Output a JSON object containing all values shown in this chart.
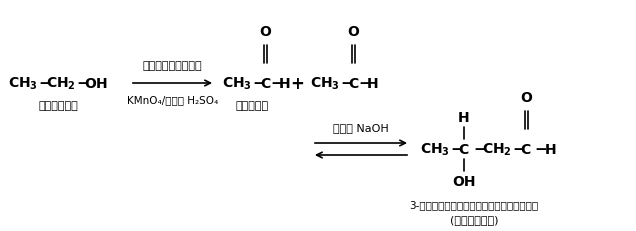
{
  "bg_color": "#ffffff",
  "text_color": "#000000",
  "fig_width": 6.36,
  "fig_height": 2.32,
  "dpi": 100,
  "reactant_label": "एथेनॉल",
  "arrow1_label_top": "आॉक्सीकरण",
  "arrow1_label_bottom": "KMnO₄/तनु H₂SO₄",
  "product1_label": "एथेनल",
  "arrow2_label": "तनु NaOH",
  "product3_label1": "3-हाइड्रॉक्सीब्यूटेनल",
  "product3_label2": "(एल्डॉल)"
}
